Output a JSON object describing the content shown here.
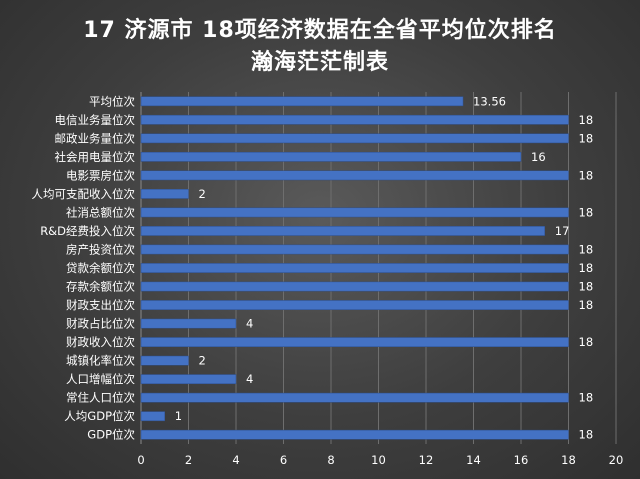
{
  "chart_data": {
    "type": "bar",
    "orientation": "horizontal",
    "title": "17 济源市  18项经济数据在全省平均位次排名",
    "subtitle": "瀚海茫茫制表",
    "categories": [
      "平均位次",
      "电信业务量位次",
      "邮政业务量位次",
      "社会用电量位次",
      "电影票房位次",
      "人均可支配收入位次",
      "社消总额位次",
      "R&D经费投入位次",
      "房产投资位次",
      "贷款余额位次",
      "存款余额位次",
      "财政支出位次",
      "财政占比位次",
      "财政收入位次",
      "城镇化率位次",
      "人口增幅位次",
      "常住人口位次",
      "人均GDP位次",
      "GDP位次"
    ],
    "values": [
      13.56,
      18,
      18,
      16,
      18,
      2,
      18,
      17,
      18,
      18,
      18,
      18,
      4,
      18,
      2,
      4,
      18,
      1,
      18
    ],
    "xlim": [
      0,
      20
    ],
    "xticks": [
      0,
      2,
      4,
      6,
      8,
      10,
      12,
      14,
      16,
      18,
      20
    ],
    "bar_color": "#4472c4",
    "grid": true,
    "legend": "none"
  }
}
